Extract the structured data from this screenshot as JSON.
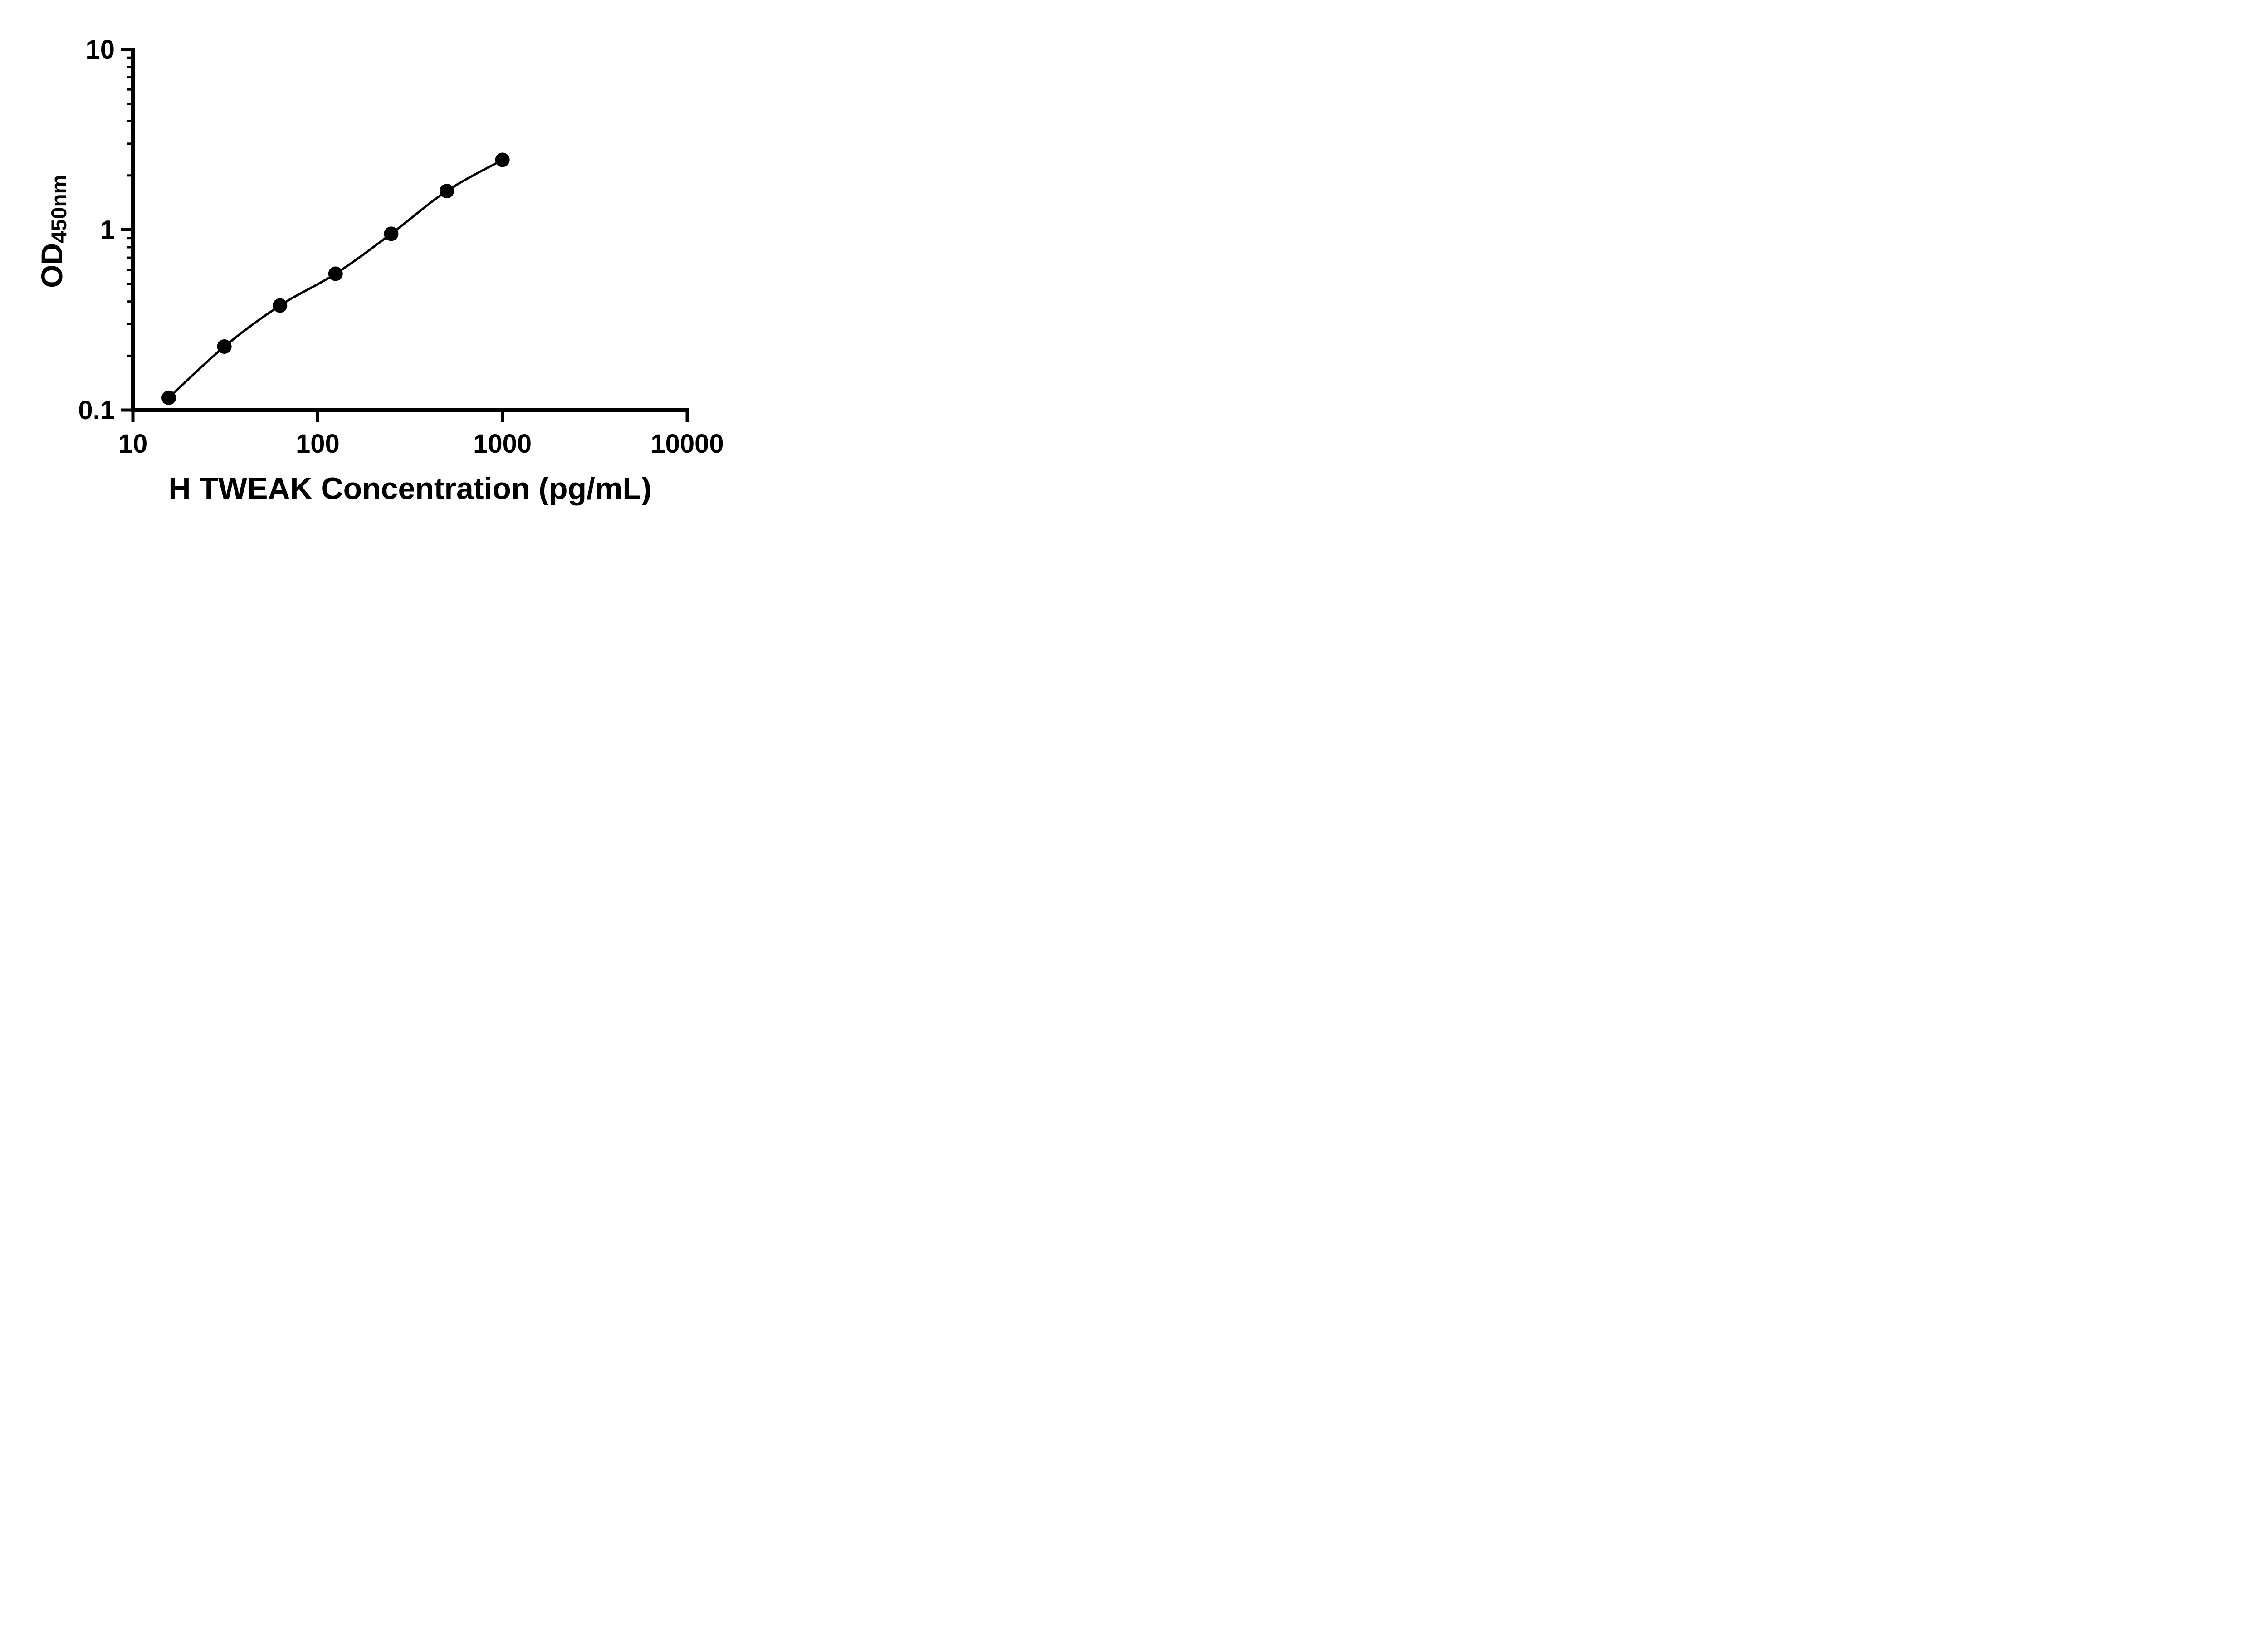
{
  "page": {
    "background": "#ffffff"
  },
  "chart": {
    "x_axis_title": "H TWEAK Concentration (pg/mL)",
    "y_axis_title_main": "OD",
    "y_axis_title_sub": "450nm"
  },
  "chart_data": {
    "type": "scatter",
    "line": "smooth standard-curve fit through points",
    "x_scale": "log10",
    "y_scale": "log10",
    "x": [
      15.63,
      31.25,
      62.5,
      125,
      250,
      500,
      1000
    ],
    "y": [
      0.117,
      0.225,
      0.38,
      0.57,
      0.95,
      1.64,
      2.44
    ],
    "xlabel": "H TWEAK Concentration (pg/mL)",
    "ylabel": "OD450nm",
    "xlim": [
      10,
      10000
    ],
    "ylim": [
      0.1,
      10
    ],
    "x_major_ticks": [
      10,
      100,
      1000,
      10000
    ],
    "x_major_tick_labels": [
      "10",
      "100",
      "1000",
      "10000"
    ],
    "y_major_ticks": [
      0.1,
      1,
      10
    ],
    "y_major_tick_labels": [
      "0.1",
      "1",
      "10"
    ],
    "y_minor_ticks": [
      0.2,
      0.3,
      0.4,
      0.5,
      0.6,
      0.7,
      0.8,
      0.9,
      2,
      3,
      4,
      5,
      6,
      7,
      8,
      9
    ],
    "marker": "filled-circle",
    "grid": false,
    "legend": "none",
    "colors": {
      "axis": "#000000",
      "line": "#000000",
      "marker": "#000000",
      "background": "#ffffff"
    }
  }
}
